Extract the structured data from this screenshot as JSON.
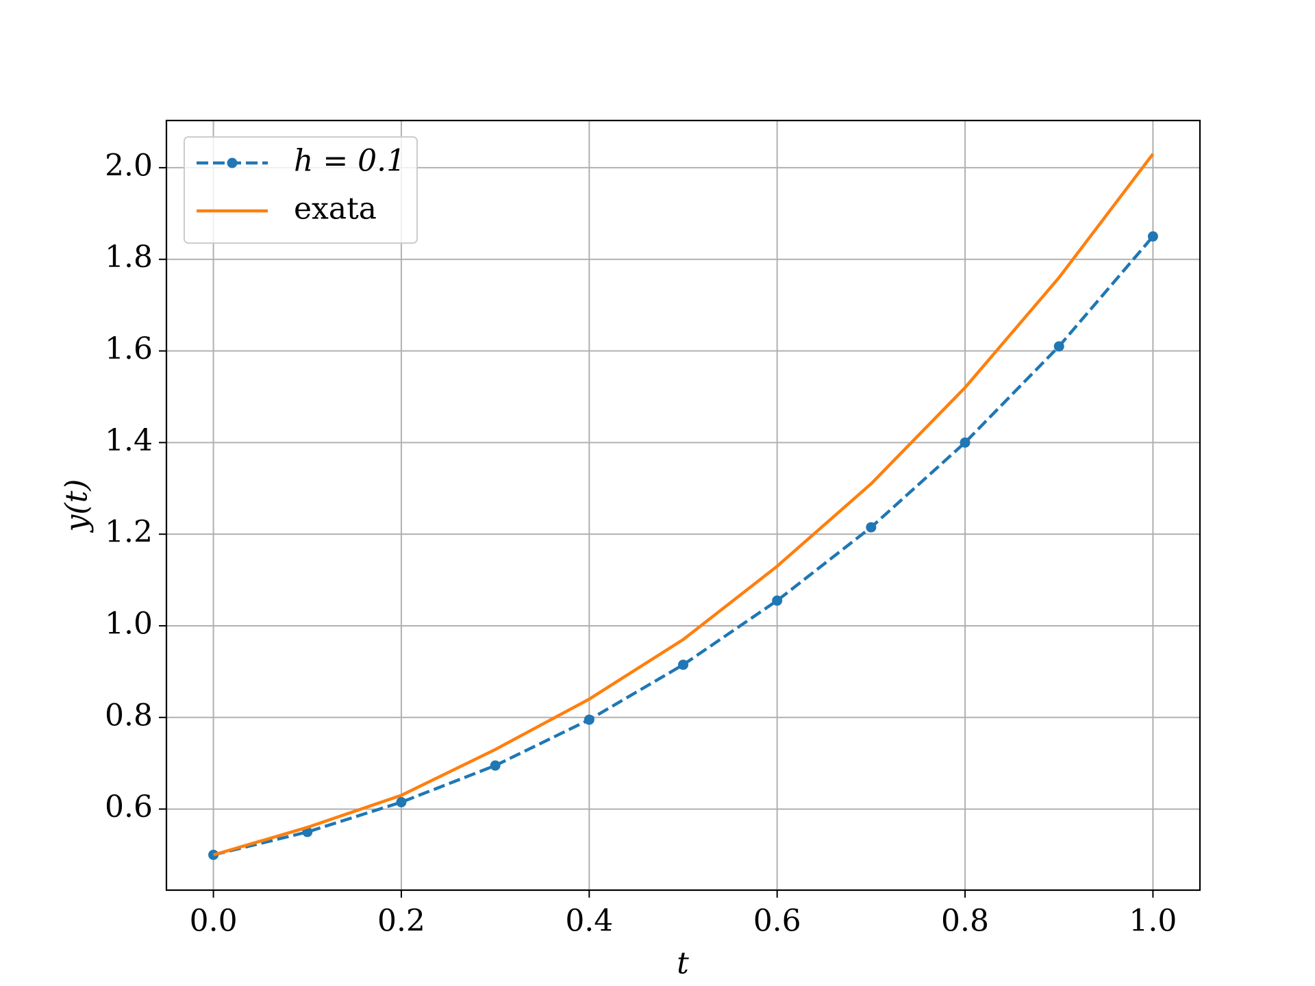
{
  "chart_data": {
    "type": "line",
    "x_label": "t",
    "y_label": "y(t)",
    "x": [
      0.0,
      0.1,
      0.2,
      0.3,
      0.4,
      0.5,
      0.6,
      0.7,
      0.8,
      0.9,
      1.0
    ],
    "series": [
      {
        "name": "h = 0.1",
        "color": "#1f77b4",
        "style": "dashed",
        "markers": true,
        "values": [
          0.5,
          0.55,
          0.615,
          0.695,
          0.795,
          0.915,
          1.055,
          1.215,
          1.4,
          1.61,
          1.85
        ]
      },
      {
        "name": "exata",
        "color": "#ff7f0e",
        "style": "solid",
        "markers": false,
        "values": [
          0.5,
          0.56,
          0.63,
          0.73,
          0.84,
          0.97,
          1.13,
          1.31,
          1.52,
          1.76,
          2.03
        ]
      }
    ],
    "xlim": [
      -0.05,
      1.05
    ],
    "ylim": [
      0.423,
      2.103
    ],
    "xticks": [
      {
        "value": 0,
        "label": "0.0"
      },
      0.2,
      0.4,
      0.6,
      0.8,
      {
        "value": 1,
        "label": "1.0"
      }
    ],
    "yticks": [
      0.6,
      0.8,
      {
        "value": 1,
        "label": "1.0"
      },
      1.2,
      1.4,
      1.6,
      1.8,
      {
        "value": 2,
        "label": "2.0"
      }
    ],
    "grid": true,
    "legend": "upper left"
  }
}
